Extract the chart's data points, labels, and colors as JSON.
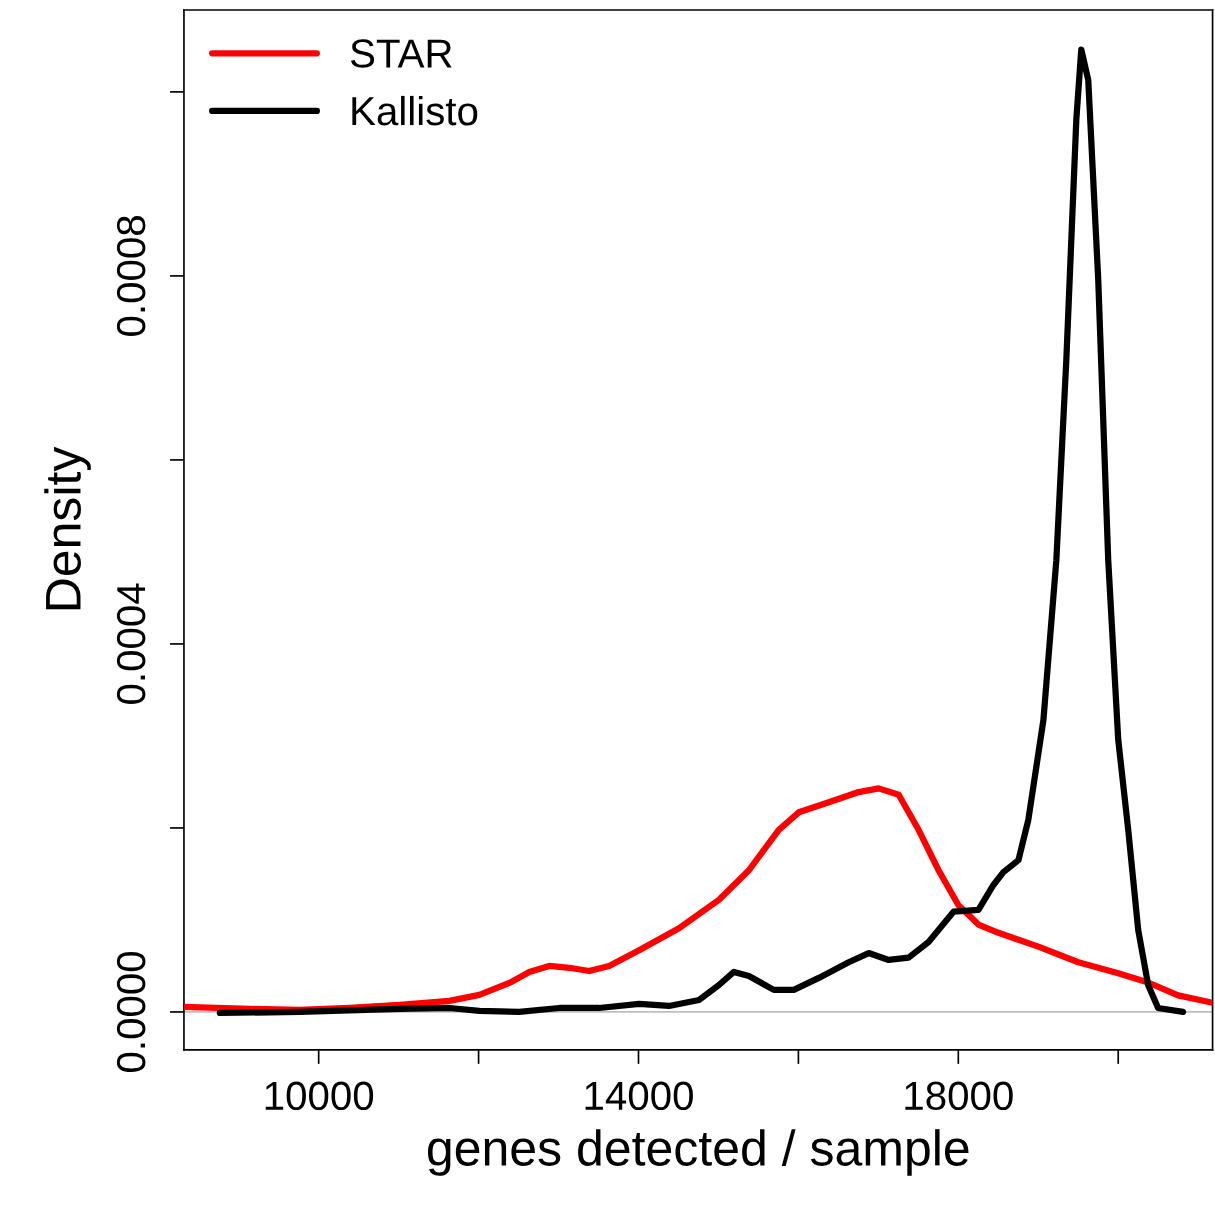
{
  "chart_data": {
    "type": "line",
    "xlabel": "genes detected / sample",
    "ylabel": "Density",
    "xlim": [
      8315,
      21180
    ],
    "ylim": [
      -4.13e-05,
      0.001089
    ],
    "xticks": [
      10000,
      {
        "value": 12000,
        "label": null
      },
      14000,
      {
        "value": 16000,
        "label": null
      },
      18000,
      {
        "value": 20000,
        "label": null
      }
    ],
    "yticks": [
      {
        "value": 0,
        "label": "0.0000"
      },
      {
        "value": 0.0002,
        "label": null
      },
      {
        "value": 0.0004,
        "label": "0.0004"
      },
      {
        "value": 0.0006,
        "label": null
      },
      {
        "value": 0.0008,
        "label": "0.0008"
      },
      {
        "value": 0.001,
        "label": null
      }
    ],
    "grid": false,
    "legend": "top left",
    "line_style": "solid",
    "marker": "none",
    "ref_lines": [
      {
        "axis": "y",
        "value": 0,
        "label": null,
        "color": "#bebebe"
      }
    ],
    "series": [
      {
        "name": "STAR",
        "color": "#ff0000",
        "x": [
          8315,
          9139,
          9763,
          10387,
          11011,
          11635,
          12010,
          12385,
          12634,
          12884,
          13134,
          13383,
          13633,
          14008,
          14507,
          15007,
          15381,
          15755,
          16005,
          16380,
          16754,
          17004,
          17254,
          17503,
          17753,
          18002,
          18252,
          18502,
          19001,
          19501,
          20000,
          20375,
          20749,
          21180
        ],
        "values": [
          5.4e-06,
          3.3e-06,
          2.2e-06,
          4.3e-06,
          7.6e-06,
          1.2e-05,
          1.85e-05,
          3.15e-05,
          4.35e-05,
          5e-05,
          4.8e-05,
          4.45e-05,
          5e-05,
          6.7e-05,
          9.1e-05,
          0.000122,
          0.000154,
          0.000198,
          0.000217,
          0.000228,
          0.000239,
          0.000243,
          0.000236,
          0.000198,
          0.000154,
          0.000116,
          9.5e-05,
          8.6e-05,
          7.1e-05,
          5.4e-05,
          4.2e-05,
          3.2e-05,
          1.8e-05,
          1e-05
        ]
      },
      {
        "name": "Kallisto",
        "color": "#000000",
        "x": [
          8764,
          9763,
          11011,
          11635,
          12010,
          12509,
          13009,
          13508,
          14008,
          14382,
          14757,
          15006,
          15193,
          15381,
          15693,
          15943,
          16255,
          16629,
          16879,
          17129,
          17378,
          17628,
          17940,
          18252,
          18439,
          18564,
          18752,
          18876,
          19064,
          19226,
          19351,
          19476,
          19538,
          19625,
          19750,
          19875,
          20000,
          20125,
          20250,
          20375,
          20499,
          20811
        ],
        "values": [
          -1.1e-06,
          0,
          3.3e-06,
          4.3e-06,
          1.1e-06,
          0,
          4.3e-06,
          4.3e-06,
          8.7e-06,
          6.5e-06,
          1.3e-05,
          2.93e-05,
          4.35e-05,
          3.9e-05,
          2.4e-05,
          2.4e-05,
          3.7e-05,
          5.4e-05,
          6.4e-05,
          5.65e-05,
          5.9e-05,
          7.6e-05,
          0.000109,
          0.000111,
          0.000138,
          0.000152,
          0.000165,
          0.000209,
          0.000317,
          0.000491,
          0.000709,
          0.00097,
          0.001046,
          0.001013,
          0.000796,
          0.000491,
          0.000296,
          0.000198,
          8.9e-05,
          2.9e-05,
          4.3e-06,
          0
        ]
      }
    ]
  }
}
